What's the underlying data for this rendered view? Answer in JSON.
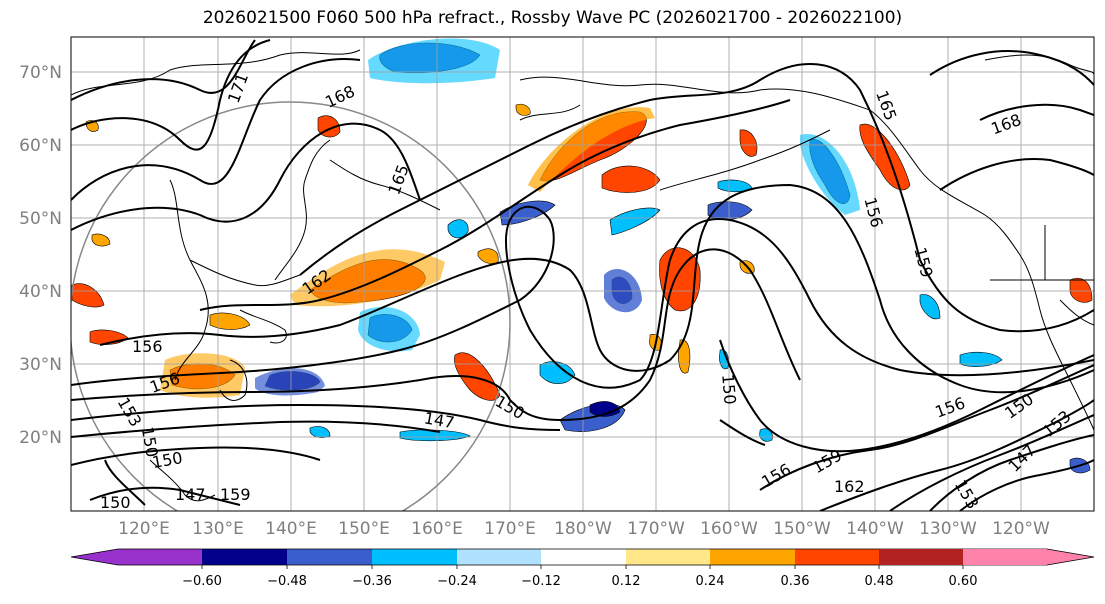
{
  "title": "2026021500 F060 500 hPa refract., Rossby Wave PC (2026021700 - 2026022100)",
  "lat_labels": [
    "70°N",
    "60°N",
    "50°N",
    "40°N",
    "30°N",
    "20°N"
  ],
  "lon_labels": [
    "120°E",
    "130°E",
    "140°E",
    "150°E",
    "160°E",
    "170°E",
    "180°W",
    "170°W",
    "160°W",
    "150°W",
    "140°W",
    "130°W",
    "120°W"
  ],
  "colorbar": {
    "ticks": [
      "−0.60",
      "−0.48",
      "−0.36",
      "−0.24",
      "−0.12",
      "0.12",
      "0.24",
      "0.36",
      "0.48",
      "0.60"
    ],
    "colors": [
      "#9932cc",
      "#00008b",
      "#3a5fcd",
      "#00bfff",
      "#b0e2ff",
      "#ffffff",
      "#ffe78a",
      "#ffa500",
      "#ff4500",
      "#b22222",
      "#ff82ab"
    ]
  },
  "contour_labels": [
    "171",
    "168",
    "165",
    "162",
    "168",
    "165",
    "156",
    "159",
    "156",
    "156",
    "147",
    "150",
    "150",
    "150",
    "147",
    "153",
    "156",
    "150",
    "147",
    "153",
    "150",
    "156",
    "159",
    "162",
    "153",
    "150",
    "147",
    "159"
  ]
}
